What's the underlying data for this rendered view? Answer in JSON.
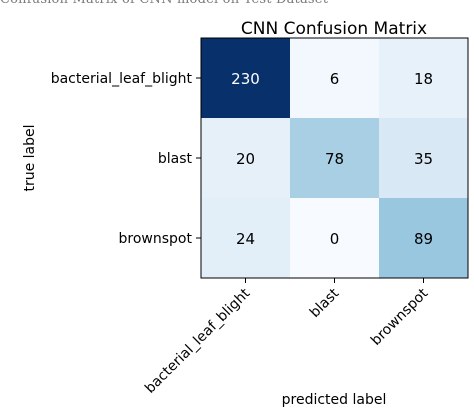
{
  "cropped_caption": "Confusion Matrix of CNN model on Test Dataset",
  "chart_data": {
    "type": "heatmap",
    "title": "CNN Confusion Matrix",
    "xlabel": "predicted label",
    "ylabel": "true label",
    "row_labels": [
      "bacterial_leaf_blight",
      "blast",
      "brownspot"
    ],
    "col_labels": [
      "bacterial_leaf_blight",
      "blast",
      "brownspot"
    ],
    "matrix": [
      [
        230,
        6,
        18
      ],
      [
        20,
        78,
        35
      ],
      [
        24,
        0,
        89
      ]
    ],
    "colormap": "Blues",
    "vmin": 0,
    "vmax": 230,
    "grid": false
  }
}
